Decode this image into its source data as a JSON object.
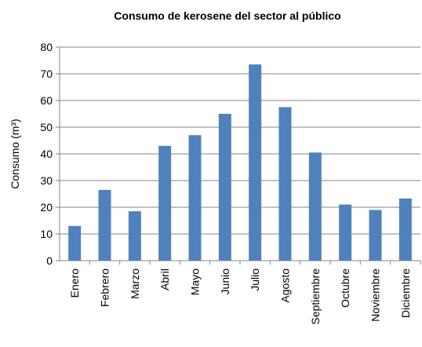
{
  "chart_data": {
    "type": "bar",
    "title": "Consumo de kerosene del sector al público",
    "y_label": "Consumo (m³)",
    "categories": [
      "Enero",
      "Febrero",
      "Marzo",
      "Abril",
      "Mayo",
      "Junio",
      "Julio",
      "Agosto",
      "Septiembre",
      "Octubre",
      "Noviembre",
      "Diciembre"
    ],
    "values": [
      13,
      26.5,
      18.5,
      43,
      47,
      55,
      73.5,
      57.5,
      40.5,
      21,
      19,
      23.3
    ],
    "color": "#4f81bd",
    "ylim": [
      0,
      80
    ],
    "yticks": [
      0,
      10,
      20,
      30,
      40,
      50,
      60,
      70,
      80
    ],
    "grid": true
  }
}
